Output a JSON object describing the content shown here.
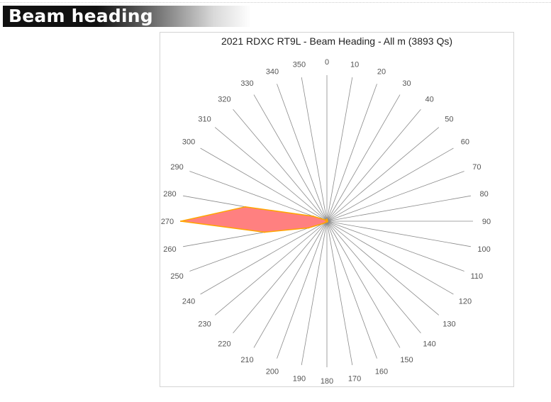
{
  "header": {
    "title": "Beam heading"
  },
  "chart_data": {
    "type": "radar",
    "title": "2021 RDXC RT9L - Beam Heading - All m (3893 Qs)",
    "categories": [
      "0",
      "10",
      "20",
      "30",
      "40",
      "50",
      "60",
      "70",
      "80",
      "90",
      "100",
      "110",
      "120",
      "130",
      "140",
      "150",
      "160",
      "170",
      "180",
      "190",
      "200",
      "210",
      "220",
      "230",
      "240",
      "250",
      "260",
      "270",
      "280",
      "290",
      "300",
      "310",
      "320",
      "330",
      "340",
      "350"
    ],
    "series": [
      {
        "values": [
          40,
          25,
          20,
          15,
          12,
          10,
          10,
          10,
          10,
          12,
          12,
          12,
          12,
          12,
          12,
          12,
          12,
          12,
          12,
          12,
          12,
          15,
          20,
          40,
          100,
          400,
          1300,
          3000,
          1700,
          300,
          60,
          25,
          15,
          20,
          30,
          40
        ]
      }
    ],
    "max": 3000,
    "colors": {
      "fill": "#ff8080",
      "stroke": "#ffa500",
      "spoke": "#8a8a8a",
      "label": "#555555"
    },
    "legend": "none",
    "grid": true
  }
}
